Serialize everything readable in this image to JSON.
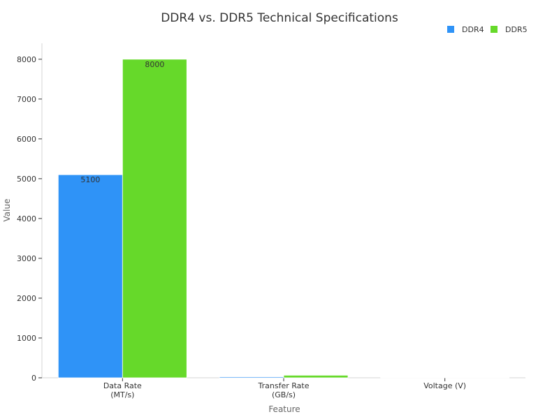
{
  "chart_data": {
    "type": "bar",
    "title": "DDR4 vs. DDR5 Technical Specifications",
    "xlabel": "Feature",
    "ylabel": "Value",
    "categories": [
      [
        "Data Rate",
        "(MT/s)"
      ],
      [
        "Transfer Rate",
        "(GB/s)"
      ],
      [
        "Voltage (V)"
      ]
    ],
    "series": [
      {
        "name": "DDR4",
        "color": "#2f93f7",
        "values": [
          5100,
          25.6,
          1.2
        ],
        "labels": [
          "5100",
          "",
          ""
        ]
      },
      {
        "name": "DDR5",
        "color": "#66d92a",
        "values": [
          8000,
          64,
          1.1
        ],
        "labels": [
          "8000",
          "",
          ""
        ]
      }
    ],
    "ylim": [
      0,
      8400
    ],
    "yticks": [
      0,
      1000,
      2000,
      3000,
      4000,
      5000,
      6000,
      7000,
      8000
    ],
    "grid": false,
    "legend_position": "top-right"
  }
}
